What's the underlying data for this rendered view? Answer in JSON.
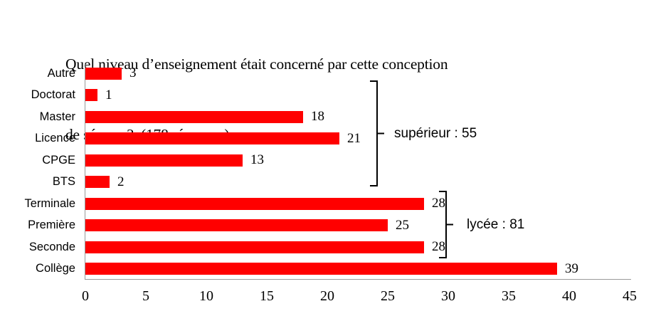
{
  "chart_data": {
    "type": "bar",
    "orientation": "horizontal",
    "title": "Quel niveau d’enseignement était concerné par cette conception de séance ?  (178 réponses)",
    "title_lines": [
      "Quel niveau d’enseignement était concerné par cette conception",
      "de séance ?  (178 réponses)"
    ],
    "responses_count": 178,
    "categories": [
      "Autre",
      "Doctorat",
      "Master",
      "Licence",
      "CPGE",
      "BTS",
      "Terminale",
      "Première",
      "Seconde",
      "Collège"
    ],
    "values": [
      3,
      1,
      18,
      21,
      13,
      2,
      28,
      25,
      28,
      39
    ],
    "xlabel": "",
    "ylabel": "",
    "xlim": [
      0,
      45
    ],
    "xticks": [
      0,
      5,
      10,
      15,
      20,
      25,
      30,
      35,
      40,
      45
    ],
    "grid": false,
    "legend_position": "none",
    "bar_color": "#ff0000",
    "axis_color": "#999999",
    "text_color": "#000000",
    "annotations": [
      {
        "label": "supérieur : 55",
        "total": 55,
        "covers": [
          "Doctorat",
          "Master",
          "Licence",
          "CPGE",
          "BTS"
        ]
      },
      {
        "label": "lycée : 81",
        "total": 81,
        "covers": [
          "Terminale",
          "Première",
          "Seconde"
        ]
      }
    ]
  }
}
